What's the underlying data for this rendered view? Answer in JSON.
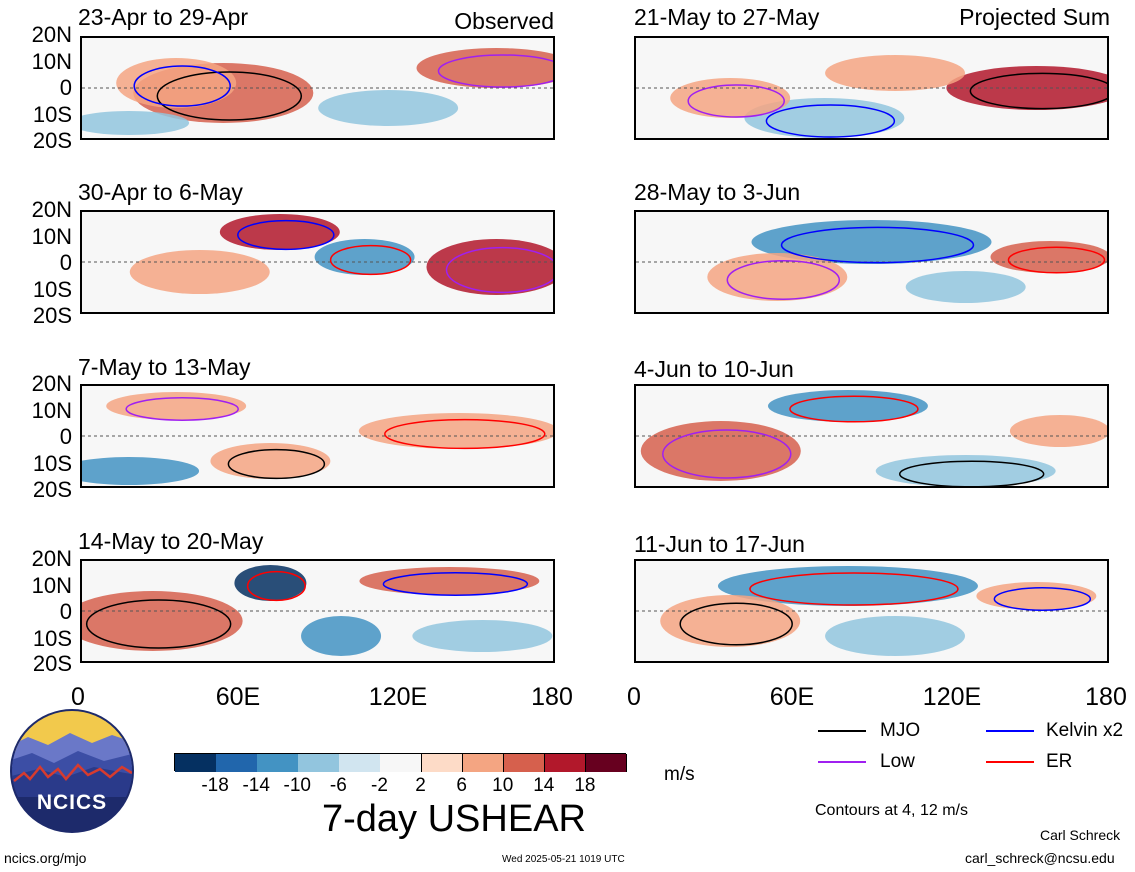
{
  "chart_data": {
    "type": "heatmap",
    "title": "7-day USHEAR",
    "units": "m/s",
    "contour_note": "Contours at 4, 12 m/s",
    "y_ticks": [
      "20N",
      "10N",
      "0",
      "10S",
      "20S"
    ],
    "x_ticks": [
      "0",
      "60E",
      "120E",
      "180"
    ],
    "colorbar": {
      "ticks": [
        "-18",
        "-14",
        "-10",
        "-6",
        "-2",
        "2",
        "6",
        "10",
        "14",
        "18"
      ],
      "colors": [
        "#053061",
        "#2166ac",
        "#4393c3",
        "#92c5de",
        "#d1e5f0",
        "#f7f7f7",
        "#fddbc7",
        "#f4a582",
        "#d6604d",
        "#b2182b",
        "#67001f"
      ]
    },
    "legend": [
      {
        "label": "MJO",
        "color": "#000000"
      },
      {
        "label": "Kelvin x2",
        "color": "#0000ff"
      },
      {
        "label": "Low",
        "color": "#a020f0"
      },
      {
        "label": "ER",
        "color": "#ff0000"
      }
    ],
    "columns": [
      {
        "tag": "Observed",
        "panels": [
          "23-Apr to 29-Apr",
          "30-Apr to 6-May",
          "7-May to 13-May",
          "14-May to 20-May"
        ]
      },
      {
        "tag": "Projected Sum",
        "panels": [
          "21-May to 27-May",
          "28-May to 3-Jun",
          "4-Jun to 10-Jun",
          "11-Jun to 17-Jun"
        ]
      }
    ]
  },
  "logo": {
    "text": "NCICS"
  },
  "footer": {
    "left": "ncics.org/mjo",
    "center": "Wed 2025-05-21 1019 UTC",
    "author": "Carl Schreck",
    "email": "carl_schreck@ncsu.edu"
  }
}
